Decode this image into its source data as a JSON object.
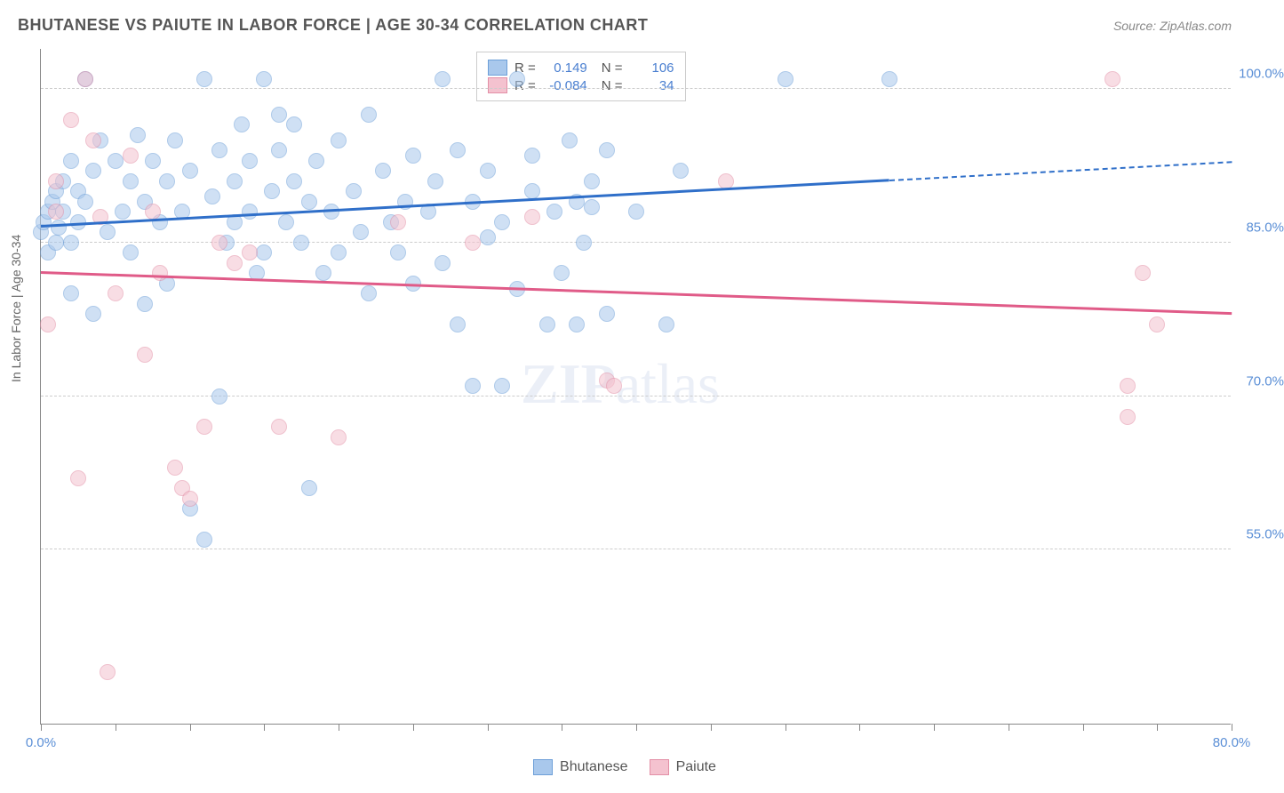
{
  "title": "BHUTANESE VS PAIUTE IN LABOR FORCE | AGE 30-34 CORRELATION CHART",
  "source": "Source: ZipAtlas.com",
  "ylabel": "In Labor Force | Age 30-34",
  "watermark_a": "ZIP",
  "watermark_b": "atlas",
  "chart": {
    "type": "scatter",
    "xlim": [
      0,
      80
    ],
    "ylim": [
      38,
      104
    ],
    "x_ticks": [
      0,
      5,
      10,
      15,
      20,
      25,
      30,
      35,
      40,
      45,
      50,
      55,
      60,
      65,
      70,
      75,
      80
    ],
    "x_tick_labels": {
      "0": "0.0%",
      "80": "80.0%"
    },
    "y_grid": [
      55,
      70,
      85,
      100
    ],
    "y_tick_labels": {
      "55": "55.0%",
      "70": "70.0%",
      "85": "85.0%",
      "100": "100.0%"
    },
    "background_color": "#ffffff",
    "grid_color": "#cccccc",
    "axis_color": "#888888"
  },
  "series": [
    {
      "name": "Bhutanese",
      "fill": "#a9c8ec",
      "stroke": "#6d9fd8",
      "trend_color": "#2f6fc9",
      "R": "0.149",
      "N": "106",
      "trend": {
        "x1": 0,
        "y1": 86.5,
        "x2": 57,
        "y2": 91.0,
        "dash_x2": 80,
        "dash_y2": 92.8
      },
      "points": [
        [
          0,
          86
        ],
        [
          0.2,
          87
        ],
        [
          0.5,
          84
        ],
        [
          0.5,
          88
        ],
        [
          0.8,
          89
        ],
        [
          1,
          85
        ],
        [
          1,
          90
        ],
        [
          1.2,
          86.5
        ],
        [
          1.5,
          91
        ],
        [
          1.5,
          88
        ],
        [
          2,
          93
        ],
        [
          2,
          85
        ],
        [
          2,
          80
        ],
        [
          2.5,
          90
        ],
        [
          2.5,
          87
        ],
        [
          3,
          101
        ],
        [
          3,
          89
        ],
        [
          3.5,
          92
        ],
        [
          3.5,
          78
        ],
        [
          4,
          95
        ],
        [
          4.5,
          86
        ],
        [
          5,
          93
        ],
        [
          5.5,
          88
        ],
        [
          6,
          91
        ],
        [
          6,
          84
        ],
        [
          6.5,
          95.5
        ],
        [
          7,
          89
        ],
        [
          7,
          79
        ],
        [
          7.5,
          93
        ],
        [
          8,
          87
        ],
        [
          8.5,
          91
        ],
        [
          8.5,
          81
        ],
        [
          9,
          95
        ],
        [
          9.5,
          88
        ],
        [
          10,
          92
        ],
        [
          10,
          59
        ],
        [
          11,
          101
        ],
        [
          11,
          56
        ],
        [
          11.5,
          89.5
        ],
        [
          12,
          94
        ],
        [
          12,
          70
        ],
        [
          12.5,
          85
        ],
        [
          13,
          91
        ],
        [
          13,
          87
        ],
        [
          13.5,
          96.5
        ],
        [
          14,
          88
        ],
        [
          14,
          93
        ],
        [
          14.5,
          82
        ],
        [
          15,
          101
        ],
        [
          15,
          84
        ],
        [
          15.5,
          90
        ],
        [
          16,
          94
        ],
        [
          16,
          97.5
        ],
        [
          16.5,
          87
        ],
        [
          17,
          91
        ],
        [
          17,
          96.5
        ],
        [
          17.5,
          85
        ],
        [
          18,
          61
        ],
        [
          18,
          89
        ],
        [
          18.5,
          93
        ],
        [
          19,
          82
        ],
        [
          19.5,
          88
        ],
        [
          20,
          95
        ],
        [
          20,
          84
        ],
        [
          21,
          90
        ],
        [
          21.5,
          86
        ],
        [
          22,
          97.5
        ],
        [
          22,
          80
        ],
        [
          23,
          92
        ],
        [
          23.5,
          87
        ],
        [
          24,
          84
        ],
        [
          24.5,
          89
        ],
        [
          25,
          93.5
        ],
        [
          25,
          81
        ],
        [
          26,
          88
        ],
        [
          26.5,
          91
        ],
        [
          27,
          101
        ],
        [
          27,
          83
        ],
        [
          28,
          94
        ],
        [
          28,
          77
        ],
        [
          29,
          89
        ],
        [
          29,
          71
        ],
        [
          30,
          92
        ],
        [
          30,
          85.5
        ],
        [
          31,
          87
        ],
        [
          32,
          101
        ],
        [
          32,
          80.5
        ],
        [
          33,
          90
        ],
        [
          33,
          93.5
        ],
        [
          34,
          77
        ],
        [
          34.5,
          88
        ],
        [
          35,
          82
        ],
        [
          35.5,
          95
        ],
        [
          36,
          89
        ],
        [
          36,
          77
        ],
        [
          37,
          91
        ],
        [
          38,
          78
        ],
        [
          38,
          94
        ],
        [
          40,
          88
        ],
        [
          42,
          77
        ],
        [
          43,
          92
        ],
        [
          50,
          101
        ],
        [
          57,
          101
        ],
        [
          36.5,
          85
        ],
        [
          37,
          88.5
        ],
        [
          31,
          71
        ]
      ]
    },
    {
      "name": "Paiute",
      "fill": "#f4c2cf",
      "stroke": "#e38fa6",
      "trend_color": "#e05b88",
      "R": "-0.084",
      "N": "34",
      "trend": {
        "x1": 0,
        "y1": 82.0,
        "x2": 80,
        "y2": 78.0,
        "dash_x2": 80,
        "dash_y2": 78.0
      },
      "points": [
        [
          0.5,
          77
        ],
        [
          1,
          88
        ],
        [
          1,
          91
        ],
        [
          2,
          97
        ],
        [
          2.5,
          62
        ],
        [
          3,
          101
        ],
        [
          3.5,
          95
        ],
        [
          4,
          87.5
        ],
        [
          5,
          80
        ],
        [
          6,
          93.5
        ],
        [
          7,
          74
        ],
        [
          7.5,
          88
        ],
        [
          8,
          82
        ],
        [
          9,
          63
        ],
        [
          9.5,
          61
        ],
        [
          10,
          60
        ],
        [
          11,
          67
        ],
        [
          12,
          85
        ],
        [
          13,
          83
        ],
        [
          14,
          84
        ],
        [
          16,
          67
        ],
        [
          20,
          66
        ],
        [
          24,
          87
        ],
        [
          29,
          85
        ],
        [
          33,
          87.5
        ],
        [
          38,
          71.5
        ],
        [
          38.5,
          71
        ],
        [
          46,
          91
        ],
        [
          72,
          101
        ],
        [
          73,
          68
        ],
        [
          73,
          71
        ],
        [
          74,
          82
        ],
        [
          75,
          77
        ],
        [
          4.5,
          43
        ]
      ]
    }
  ],
  "legend": {
    "rows": [
      {
        "swatch_fill": "#a9c8ec",
        "swatch_stroke": "#6d9fd8",
        "R_label": "R =",
        "R": "0.149",
        "N_label": "N =",
        "N": "106"
      },
      {
        "swatch_fill": "#f4c2cf",
        "swatch_stroke": "#e38fa6",
        "R_label": "R =",
        "R": "-0.084",
        "N_label": "N =",
        "N": "34"
      }
    ]
  },
  "bottom_legend": [
    {
      "swatch_fill": "#a9c8ec",
      "swatch_stroke": "#6d9fd8",
      "label": "Bhutanese"
    },
    {
      "swatch_fill": "#f4c2cf",
      "swatch_stroke": "#e38fa6",
      "label": "Paiute"
    }
  ]
}
